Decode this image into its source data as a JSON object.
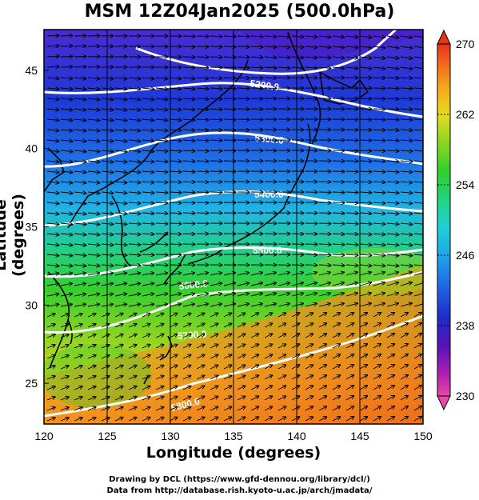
{
  "title": "MSM 12Z04Jan2025 (500.0hPa)",
  "xlabel": "Longitude (degrees)",
  "ylabel": "Latitude  (degrees)",
  "credits": {
    "line1": "Drawing by DCL (https://www.gfd-dennou.org/library/dcl/)",
    "line2": "Data from http://database.rish.kyoto-u.ac.jp/arch/jmadata/"
  },
  "chart_data": {
    "type": "heatmap",
    "x_ticks": [
      "120",
      "125",
      "130",
      "135",
      "140",
      "145",
      "150"
    ],
    "y_ticks": [
      "25",
      "30",
      "35",
      "40",
      "45"
    ],
    "xlim": [
      120,
      150
    ],
    "ylim": [
      22.4,
      47.6
    ],
    "temperature_colorbar": {
      "ticks": [
        "230",
        "238",
        "246",
        "254",
        "262",
        "270"
      ],
      "range": [
        230,
        270
      ],
      "colors": [
        "#cc33cc",
        "#6b0fc0",
        "#1f2bd0",
        "#1f6fe8",
        "#22c4e6",
        "#22d39a",
        "#2fd02a",
        "#a4d824",
        "#f0dd20",
        "#f7a31c",
        "#f2631c",
        "#e8321a"
      ]
    },
    "height_contours": [
      {
        "label": "5200.0"
      },
      {
        "label": "5300.0"
      },
      {
        "label": "5400.0"
      },
      {
        "label": "5500.0"
      },
      {
        "label": "5600.0"
      },
      {
        "label": "5700.0"
      },
      {
        "label": "5800.0"
      }
    ],
    "wind_field": "wind vectors"
  }
}
